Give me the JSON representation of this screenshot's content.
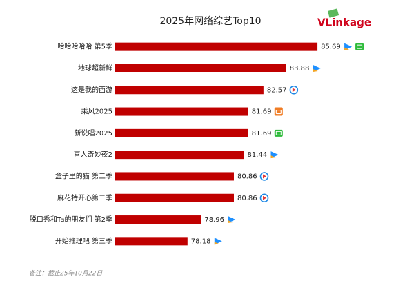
{
  "chart_data": {
    "type": "hbar",
    "title": "2025年网络综艺Top10",
    "logo": "VLinkage",
    "categories": [
      "哈哈哈哈哈 第5季",
      "地球超新鲜",
      "这是我的西游",
      "乘风2025",
      "新说唱2025",
      "喜人奇妙夜2",
      "盒子里的猫 第二季",
      "麻花特开心第二季",
      "脱口秀和Ta的朋友们 第2季",
      "开始推理吧 第三季"
    ],
    "values": [
      85.69,
      83.88,
      82.57,
      81.69,
      81.69,
      81.44,
      80.86,
      80.86,
      78.96,
      78.18
    ],
    "color": "#c00000",
    "xlim": [
      74,
      88
    ],
    "note": "备注：截止25年10月22日"
  }
}
